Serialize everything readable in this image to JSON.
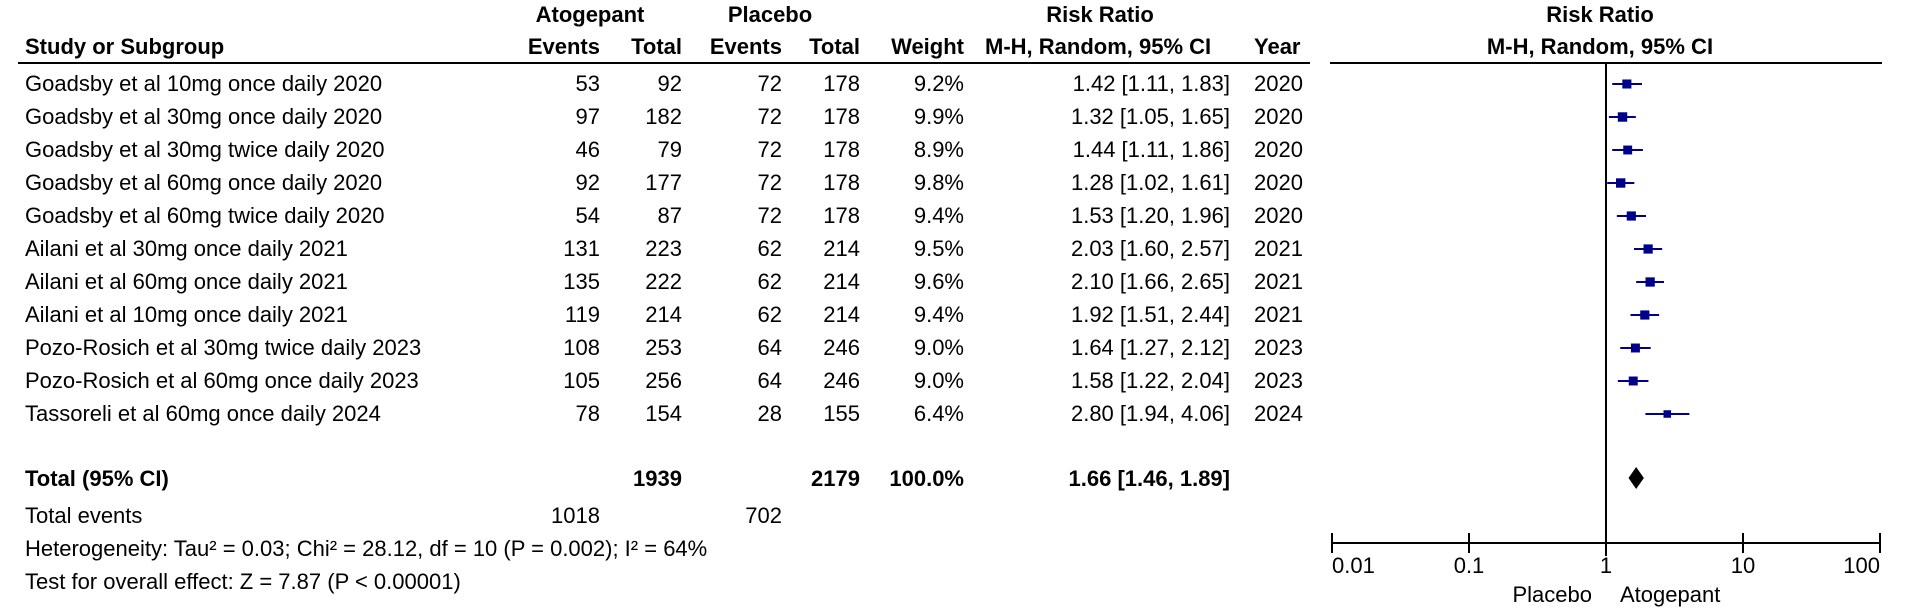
{
  "headers": {
    "group_atogepant": "Atogepant",
    "group_placebo": "Placebo",
    "group_rr_table": "Risk Ratio",
    "group_rr_plot": "Risk Ratio",
    "study": "Study or Subgroup",
    "events_a": "Events",
    "total_a": "Total",
    "events_p": "Events",
    "total_p": "Total",
    "weight": "Weight",
    "method_table": "M-H, Random, 95% CI",
    "year": "Year",
    "method_plot": "M-H, Random, 95% CI"
  },
  "studies": [
    {
      "name": "Goadsby et al 10mg once daily 2020",
      "ev_a": "53",
      "tot_a": "92",
      "ev_p": "72",
      "tot_p": "178",
      "weight": "9.2%",
      "ci_text": "1.42 [1.11, 1.83]",
      "year": "2020"
    },
    {
      "name": "Goadsby et al 30mg once daily 2020",
      "ev_a": "97",
      "tot_a": "182",
      "ev_p": "72",
      "tot_p": "178",
      "weight": "9.9%",
      "ci_text": "1.32 [1.05, 1.65]",
      "year": "2020"
    },
    {
      "name": "Goadsby et al 30mg twice daily 2020",
      "ev_a": "46",
      "tot_a": "79",
      "ev_p": "72",
      "tot_p": "178",
      "weight": "8.9%",
      "ci_text": "1.44 [1.11, 1.86]",
      "year": "2020"
    },
    {
      "name": "Goadsby et al 60mg once daily 2020",
      "ev_a": "92",
      "tot_a": "177",
      "ev_p": "72",
      "tot_p": "178",
      "weight": "9.8%",
      "ci_text": "1.28 [1.02, 1.61]",
      "year": "2020"
    },
    {
      "name": "Goadsby et al 60mg twice daily 2020",
      "ev_a": "54",
      "tot_a": "87",
      "ev_p": "72",
      "tot_p": "178",
      "weight": "9.4%",
      "ci_text": "1.53 [1.20, 1.96]",
      "year": "2020"
    },
    {
      "name": "Ailani et al 30mg once daily 2021",
      "ev_a": "131",
      "tot_a": "223",
      "ev_p": "62",
      "tot_p": "214",
      "weight": "9.5%",
      "ci_text": "2.03 [1.60, 2.57]",
      "year": "2021"
    },
    {
      "name": "Ailani et al 60mg once daily 2021",
      "ev_a": "135",
      "tot_a": "222",
      "ev_p": "62",
      "tot_p": "214",
      "weight": "9.6%",
      "ci_text": "2.10 [1.66, 2.65]",
      "year": "2021"
    },
    {
      "name": "Ailani et al 10mg once daily 2021",
      "ev_a": "119",
      "tot_a": "214",
      "ev_p": "62",
      "tot_p": "214",
      "weight": "9.4%",
      "ci_text": "1.92 [1.51, 2.44]",
      "year": "2021"
    },
    {
      "name": "Pozo-Rosich et al 30mg twice daily 2023",
      "ev_a": "108",
      "tot_a": "253",
      "ev_p": "64",
      "tot_p": "246",
      "weight": "9.0%",
      "ci_text": "1.64 [1.27, 2.12]",
      "year": "2023"
    },
    {
      "name": "Pozo-Rosich et al 60mg once daily 2023",
      "ev_a": "105",
      "tot_a": "256",
      "ev_p": "64",
      "tot_p": "246",
      "weight": "9.0%",
      "ci_text": "1.58 [1.22, 2.04]",
      "year": "2023"
    },
    {
      "name": "Tassoreli et al 60mg once daily 2024",
      "ev_a": "78",
      "tot_a": "154",
      "ev_p": "28",
      "tot_p": "155",
      "weight": "6.4%",
      "ci_text": "2.80 [1.94, 4.06]",
      "year": "2024"
    }
  ],
  "total": {
    "label": "Total (95% CI)",
    "tot_a": "1939",
    "tot_p": "2179",
    "weight": "100.0%",
    "ci_text": "1.66 [1.46, 1.89]"
  },
  "total_events": {
    "label": "Total events",
    "ev_a": "1018",
    "ev_p": "702"
  },
  "heterogeneity": "Heterogeneity: Tau² = 0.03; Chi² = 28.12, df = 10 (P = 0.002); I² = 64%",
  "overall_effect": "Test for overall effect: Z = 7.87 (P < 0.00001)",
  "chart_data": {
    "type": "scatter",
    "subtype": "forest",
    "scale": "log",
    "xlim": [
      0.01,
      100
    ],
    "x_ticks": [
      "0.01",
      "0.1",
      "1",
      "10",
      "100"
    ],
    "x_tick_values": [
      0.01,
      0.1,
      1,
      10,
      100
    ],
    "reference_line": 1,
    "favours_left": "Placebo",
    "favours_right": "Atogepant",
    "studies": [
      {
        "rr": 1.42,
        "lo": 1.11,
        "hi": 1.83,
        "weight": 9.2
      },
      {
        "rr": 1.32,
        "lo": 1.05,
        "hi": 1.65,
        "weight": 9.9
      },
      {
        "rr": 1.44,
        "lo": 1.11,
        "hi": 1.86,
        "weight": 8.9
      },
      {
        "rr": 1.28,
        "lo": 1.02,
        "hi": 1.61,
        "weight": 9.8
      },
      {
        "rr": 1.53,
        "lo": 1.2,
        "hi": 1.96,
        "weight": 9.4
      },
      {
        "rr": 2.03,
        "lo": 1.6,
        "hi": 2.57,
        "weight": 9.5
      },
      {
        "rr": 2.1,
        "lo": 1.66,
        "hi": 2.65,
        "weight": 9.6
      },
      {
        "rr": 1.92,
        "lo": 1.51,
        "hi": 2.44,
        "weight": 9.4
      },
      {
        "rr": 1.64,
        "lo": 1.27,
        "hi": 2.12,
        "weight": 9.0
      },
      {
        "rr": 1.58,
        "lo": 1.22,
        "hi": 2.04,
        "weight": 9.0
      },
      {
        "rr": 2.8,
        "lo": 1.94,
        "hi": 4.06,
        "weight": 6.4
      }
    ],
    "pooled": {
      "rr": 1.66,
      "lo": 1.46,
      "hi": 1.89
    },
    "marker_color": "#00008b"
  }
}
